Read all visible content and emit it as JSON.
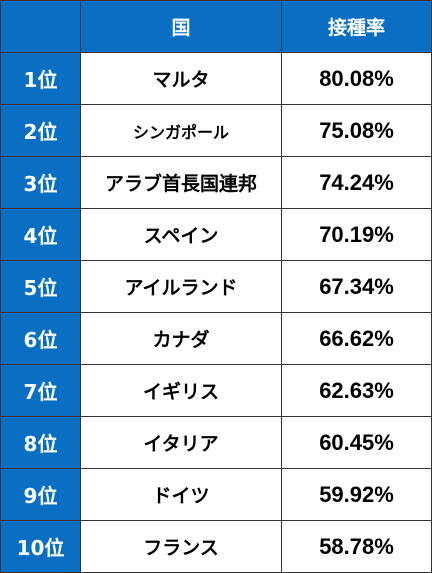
{
  "table": {
    "headers": {
      "rank": "",
      "country": "国",
      "rate": "接種率"
    },
    "rows": [
      {
        "rank": "1位",
        "country": "マルタ",
        "rate": "80.08%"
      },
      {
        "rank": "2位",
        "country": "シンガポール",
        "rate": "75.08%"
      },
      {
        "rank": "3位",
        "country": "アラブ首長国連邦",
        "rate": "74.24%"
      },
      {
        "rank": "4位",
        "country": "スペイン",
        "rate": "70.19%"
      },
      {
        "rank": "5位",
        "country": "アイルランド",
        "rate": "67.34%"
      },
      {
        "rank": "6位",
        "country": "カナダ",
        "rate": "66.62%"
      },
      {
        "rank": "7位",
        "country": "イギリス",
        "rate": "62.63%"
      },
      {
        "rank": "8位",
        "country": "イタリア",
        "rate": "60.45%"
      },
      {
        "rank": "9位",
        "country": "ドイツ",
        "rate": "59.92%"
      },
      {
        "rank": "10位",
        "country": "フランス",
        "rate": "58.78%"
      }
    ]
  },
  "colors": {
    "header_bg": "#0a6fc2",
    "header_text": "#ffffff",
    "cell_bg": "#ffffff",
    "cell_text": "#000000",
    "border": "#333333"
  }
}
